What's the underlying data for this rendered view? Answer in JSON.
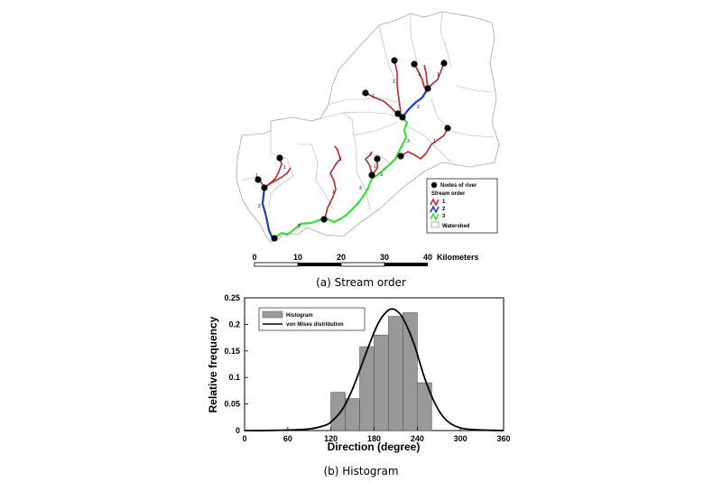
{
  "panel_a": {
    "caption": "(a) Stream order",
    "scale_bar": {
      "ticks": [
        "0",
        "10",
        "20",
        "30",
        "40"
      ],
      "unit": "Kilometers"
    },
    "legend": {
      "nodes": "Nodes of river",
      "stream_order_title": "Stream order",
      "orders": [
        "1",
        "2",
        "3"
      ],
      "watershed": "Watershed"
    },
    "order_labels": [
      "1",
      "1",
      "1",
      "1",
      "1",
      "1",
      "1",
      "1",
      "1",
      "1",
      "2",
      "2",
      "3",
      "3",
      "3",
      "3"
    ],
    "colors": {
      "order1": "#c0282a",
      "order2": "#1e3cc8",
      "order3": "#3cdc3c",
      "watershed": "#a0a0a0",
      "node": "#000000"
    }
  },
  "panel_b": {
    "caption": "(b) Histogram",
    "legend_hist": "Histogram",
    "legend_curve": "von Mises distribution",
    "colors": {
      "bar": "#999999",
      "bar_edge": "#555555",
      "curve": "#000000"
    }
  },
  "chart_data": {
    "type": "bar",
    "xlabel": "Direction (degree)",
    "ylabel": "Relative frequency",
    "xlim": [
      0,
      360
    ],
    "ylim": [
      0,
      0.25
    ],
    "xticks": [
      0,
      60,
      120,
      180,
      240,
      300,
      360
    ],
    "yticks": [
      "0",
      "0.05",
      "0.1",
      "0.15",
      "0.2",
      "0.25"
    ],
    "bins": [
      {
        "start": 120,
        "end": 140,
        "value": 0.072
      },
      {
        "start": 140,
        "end": 160,
        "value": 0.06
      },
      {
        "start": 160,
        "end": 180,
        "value": 0.158
      },
      {
        "start": 180,
        "end": 200,
        "value": 0.18
      },
      {
        "start": 200,
        "end": 220,
        "value": 0.215
      },
      {
        "start": 220,
        "end": 240,
        "value": 0.222
      },
      {
        "start": 240,
        "end": 260,
        "value": 0.09
      }
    ],
    "series": [
      {
        "name": "Histogram",
        "type": "bar"
      },
      {
        "name": "von Mises distribution",
        "type": "line",
        "x": [
          0,
          30,
          60,
          90,
          110,
          120,
          135,
          150,
          165,
          180,
          190,
          200,
          205,
          210,
          220,
          235,
          250,
          265,
          280,
          300,
          330,
          360
        ],
        "y": [
          0,
          0,
          0.001,
          0.003,
          0.009,
          0.016,
          0.038,
          0.078,
          0.132,
          0.185,
          0.212,
          0.227,
          0.229,
          0.227,
          0.212,
          0.165,
          0.1,
          0.05,
          0.02,
          0.005,
          0.001,
          0
        ]
      }
    ],
    "legend_position": "top-left"
  }
}
